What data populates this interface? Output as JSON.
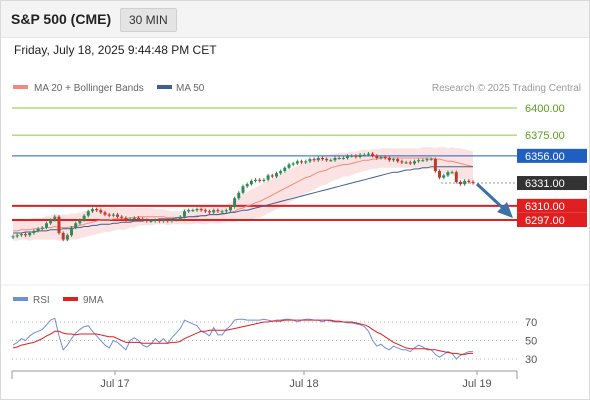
{
  "header": {
    "title": "S&P 500 (CME)",
    "timeframe": "30 MIN",
    "datetime": "Friday, July 18, 2025 9:44:48 PM CET"
  },
  "legend": {
    "ma20_bb": "MA 20 + Bollinger Bands",
    "ma50": "MA 50",
    "credit": "Research © 2025 Trading Central",
    "rsi": "RSI",
    "ma9": "9MA"
  },
  "colors": {
    "ma20": "#f08a80",
    "ma50": "#3d5f96",
    "bollinger_fill": "#fbe3e3",
    "candle_up": "#2e8b57",
    "candle_down": "#c0392b",
    "resistance_line": "#8dc63f",
    "pivot_line": "#1f5fbf",
    "support_line": "#e02020",
    "current_price_bg": "#333333",
    "rsi": "#6f8fd8",
    "rsi_ma": "#e02020",
    "arrow": "#3d6fa8"
  },
  "chart_data": [
    {
      "type": "candlestick",
      "title": "S&P 500 (CME) 30 MIN",
      "x_ticks": [
        "Jul 17",
        "Jul 18",
        "Jul 19"
      ],
      "ylim": [
        6270,
        6420
      ],
      "levels": [
        {
          "value": 6400.0,
          "label": "6400.00",
          "kind": "resistance"
        },
        {
          "value": 6375.0,
          "label": "6375.00",
          "kind": "resistance"
        },
        {
          "value": 6356.0,
          "label": "6356.00",
          "kind": "pivot"
        },
        {
          "value": 6331.0,
          "label": "6331.00",
          "kind": "last"
        },
        {
          "value": 6310.0,
          "label": "6310.00",
          "kind": "support"
        },
        {
          "value": 6297.0,
          "label": "6297.00",
          "kind": "support"
        }
      ],
      "close": [
        6282,
        6283,
        6284,
        6283,
        6285,
        6287,
        6289,
        6290,
        6294,
        6297,
        6300,
        6285,
        6279,
        6283,
        6290,
        6294,
        6297,
        6301,
        6305,
        6307,
        6306,
        6304,
        6302,
        6301,
        6302,
        6300,
        6299,
        6297,
        6298,
        6299,
        6298,
        6297,
        6296,
        6296,
        6297,
        6296,
        6297,
        6296,
        6297,
        6298,
        6300,
        6305,
        6306,
        6306,
        6307,
        6306,
        6305,
        6304,
        6306,
        6305,
        6305,
        6306,
        6309,
        6317,
        6322,
        6328,
        6330,
        6333,
        6334,
        6333,
        6334,
        6338,
        6337,
        6340,
        6342,
        6345,
        6348,
        6349,
        6351,
        6350,
        6351,
        6353,
        6352,
        6354,
        6353,
        6352,
        6352,
        6354,
        6354,
        6354,
        6356,
        6356,
        6355,
        6357,
        6357,
        6358,
        6356,
        6354,
        6355,
        6354,
        6352,
        6353,
        6351,
        6350,
        6350,
        6349,
        6351,
        6352,
        6352,
        6353,
        6353,
        6342,
        6336,
        6338,
        6341,
        6341,
        6332,
        6330,
        6333,
        6332,
        6331
      ],
      "ma20": [
        6287,
        6287,
        6288,
        6288,
        6288,
        6289,
        6289,
        6289,
        6290,
        6290,
        6291,
        6290,
        6290,
        6290,
        6291,
        6291,
        6292,
        6293,
        6294,
        6295,
        6296,
        6297,
        6297,
        6297,
        6298,
        6298,
        6298,
        6298,
        6299,
        6299,
        6300,
        6300,
        6300,
        6300,
        6300,
        6300,
        6300,
        6299,
        6299,
        6299,
        6299,
        6300,
        6300,
        6300,
        6301,
        6301,
        6301,
        6302,
        6302,
        6302,
        6302,
        6303,
        6304,
        6305,
        6307,
        6308,
        6310,
        6311,
        6313,
        6314,
        6316,
        6318,
        6320,
        6322,
        6324,
        6326,
        6328,
        6330,
        6332,
        6334,
        6336,
        6337,
        6339,
        6341,
        6342,
        6343,
        6345,
        6346,
        6347,
        6348,
        6348,
        6349,
        6350,
        6351,
        6352,
        6352,
        6353,
        6353,
        6354,
        6354,
        6354,
        6354,
        6354,
        6354,
        6354,
        6354,
        6354,
        6354,
        6354,
        6354,
        6354,
        6353,
        6353,
        6352,
        6351,
        6351,
        6350,
        6349,
        6348,
        6347,
        6346
      ],
      "ma50": [
        6285,
        6285,
        6285,
        6286,
        6286,
        6286,
        6287,
        6287,
        6287,
        6288,
        6288,
        6288,
        6289,
        6289,
        6289,
        6290,
        6290,
        6291,
        6291,
        6292,
        6292,
        6293,
        6293,
        6293,
        6294,
        6294,
        6295,
        6295,
        6295,
        6296,
        6296,
        6296,
        6297,
        6297,
        6297,
        6298,
        6298,
        6298,
        6298,
        6299,
        6299,
        6299,
        6300,
        6300,
        6300,
        6301,
        6301,
        6302,
        6302,
        6302,
        6303,
        6303,
        6304,
        6304,
        6305,
        6306,
        6306,
        6307,
        6308,
        6309,
        6310,
        6311,
        6312,
        6313,
        6314,
        6315,
        6316,
        6317,
        6318,
        6319,
        6320,
        6321,
        6322,
        6323,
        6324,
        6325,
        6326,
        6327,
        6328,
        6329,
        6330,
        6331,
        6332,
        6333,
        6334,
        6335,
        6336,
        6337,
        6338,
        6339,
        6340,
        6341,
        6341,
        6342,
        6343,
        6343,
        6344,
        6344,
        6345,
        6345,
        6346,
        6346,
        6346,
        6346,
        6346,
        6346,
        6346,
        6346,
        6346,
        6346,
        6346
      ],
      "bb_width": [
        9,
        9,
        9,
        9,
        10,
        10,
        10,
        10,
        11,
        11,
        12,
        12,
        12,
        12,
        12,
        12,
        12,
        12,
        12,
        12,
        12,
        12,
        11,
        11,
        11,
        10,
        10,
        10,
        9,
        9,
        8,
        8,
        8,
        8,
        7,
        7,
        7,
        7,
        6,
        6,
        6,
        7,
        7,
        7,
        7,
        8,
        8,
        8,
        8,
        8,
        8,
        8,
        9,
        10,
        11,
        12,
        13,
        14,
        14,
        15,
        15,
        15,
        15,
        15,
        15,
        15,
        15,
        15,
        15,
        15,
        14,
        14,
        14,
        14,
        13,
        13,
        13,
        12,
        12,
        11,
        11,
        11,
        10,
        10,
        10,
        9,
        9,
        9,
        9,
        9,
        9,
        9,
        9,
        9,
        9,
        9,
        9,
        9,
        10,
        10,
        10,
        10,
        11,
        12,
        12,
        13,
        13,
        14,
        14,
        14,
        14
      ]
    },
    {
      "type": "line",
      "title": "RSI",
      "ylim": [
        20,
        80
      ],
      "y_ticks": [
        70,
        50,
        30
      ],
      "series": [
        {
          "name": "RSI",
          "values": [
            45,
            48,
            52,
            50,
            55,
            58,
            60,
            62,
            67,
            72,
            74,
            55,
            40,
            45,
            52,
            58,
            62,
            65,
            66,
            60,
            55,
            50,
            45,
            42,
            50,
            48,
            44,
            40,
            50,
            53,
            50,
            45,
            43,
            46,
            52,
            48,
            52,
            47,
            53,
            58,
            63,
            72,
            70,
            68,
            66,
            60,
            58,
            55,
            64,
            56,
            56,
            62,
            66,
            72,
            73,
            73,
            72,
            72,
            72,
            72,
            73,
            72,
            71,
            72,
            72,
            73,
            73,
            72,
            70,
            72,
            73,
            73,
            72,
            72,
            70,
            72,
            71,
            70,
            70,
            70,
            69,
            69,
            68,
            67,
            65,
            60,
            50,
            44,
            46,
            42,
            40,
            44,
            42,
            40,
            40,
            38,
            42,
            45,
            43,
            40,
            40,
            35,
            32,
            35,
            38,
            36,
            30,
            34,
            36,
            38,
            38
          ]
        },
        {
          "name": "9MA",
          "values": [
            42,
            43,
            45,
            46,
            47,
            48,
            50,
            52,
            55,
            57,
            60,
            60,
            58,
            57,
            57,
            56,
            57,
            57,
            57,
            57,
            57,
            56,
            55,
            54,
            54,
            52,
            50,
            48,
            48,
            48,
            48,
            47,
            47,
            47,
            47,
            47,
            47,
            47,
            48,
            48,
            49,
            52,
            54,
            56,
            58,
            60,
            60,
            61,
            61,
            61,
            61,
            61,
            62,
            63,
            64,
            65,
            66,
            67,
            68,
            69,
            70,
            70,
            71,
            71,
            71,
            72,
            72,
            72,
            72,
            72,
            72,
            72,
            72,
            72,
            72,
            72,
            72,
            71,
            71,
            70,
            70,
            70,
            69,
            68,
            67,
            65,
            62,
            59,
            57,
            54,
            51,
            48,
            46,
            44,
            42,
            41,
            41,
            41,
            41,
            41,
            40,
            40,
            39,
            38,
            37,
            36,
            36,
            35,
            35,
            36,
            36
          ]
        }
      ]
    }
  ]
}
